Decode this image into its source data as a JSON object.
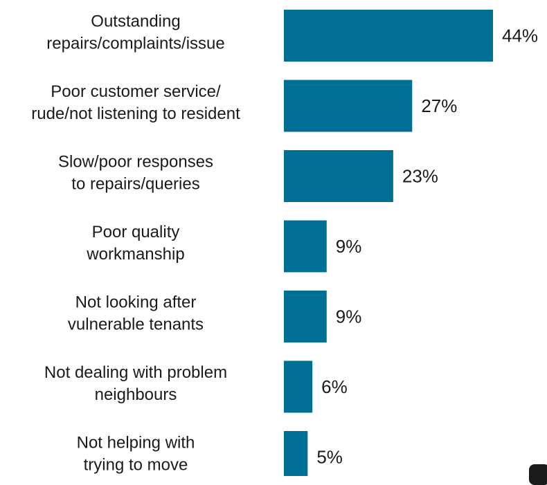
{
  "chart_data": {
    "type": "bar",
    "orientation": "horizontal",
    "categories": [
      [
        "Outstanding",
        "repairs/complaints/issue"
      ],
      [
        "Poor customer service/",
        "rude/not listening to resident"
      ],
      [
        "Slow/poor responses",
        "to repairs/queries"
      ],
      [
        "Poor quality",
        "workmanship"
      ],
      [
        "Not looking after",
        "vulnerable tenants"
      ],
      [
        "Not dealing with problem",
        "neighbours"
      ],
      [
        "Not helping with",
        "trying to move"
      ]
    ],
    "values": [
      44,
      27,
      23,
      9,
      9,
      6,
      5
    ],
    "value_labels": [
      "44%",
      "27%",
      "23%",
      "9%",
      "9%",
      "6%",
      "5%"
    ],
    "bar_color": "#006f96",
    "xlim": [
      0,
      44
    ],
    "grid": false,
    "legend": "none"
  }
}
